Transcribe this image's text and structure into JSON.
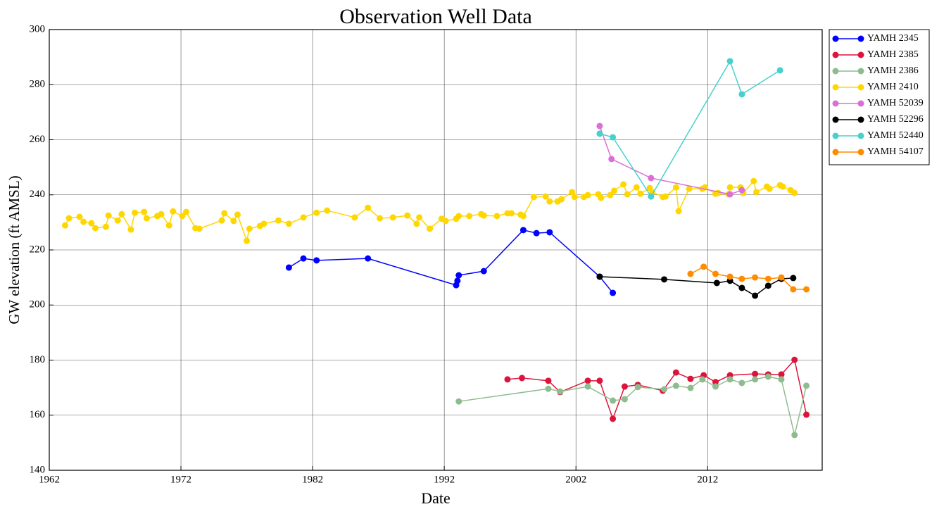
{
  "chart_data": {
    "type": "line",
    "title": "Observation Well Data",
    "x_label": "Date",
    "y_label": "GW elevation (ft AMSL)",
    "xlim": [
      1962,
      2020.7
    ],
    "xticks": [
      1962,
      1972,
      1982,
      1992,
      2002,
      2012
    ],
    "ylim": [
      140,
      300
    ],
    "yticks": [
      140,
      160,
      180,
      200,
      220,
      240,
      260,
      280,
      300
    ],
    "grid": true,
    "legend": "outside-upper-right",
    "series": [
      {
        "name": "YAMH 2345",
        "color": "#0000ff",
        "x": [
          1980.2,
          1981.3,
          1982.3,
          1986.2,
          1992.9,
          1993.0,
          1993.1,
          1995.0,
          1998.0,
          1999.0,
          2000.0,
          2003.8,
          2004.8
        ],
        "values": [
          213.6,
          216.9,
          216.2,
          216.9,
          207.2,
          208.8,
          210.8,
          212.3,
          227.2,
          226.1,
          226.4,
          210.3,
          204.4
        ]
      },
      {
        "name": "YAMH 2385",
        "color": "#dc143c",
        "x": [
          1996.8,
          1997.9,
          1999.9,
          2000.8,
          2002.9,
          2003.8,
          2004.8,
          2005.7,
          2006.7,
          2008.6,
          2009.6,
          2010.7,
          2011.7,
          2012.6,
          2013.7,
          2015.6,
          2016.6,
          2017.6,
          2018.6,
          2019.5
        ],
        "values": [
          173.0,
          173.5,
          172.5,
          168.4,
          172.5,
          172.5,
          158.7,
          170.4,
          171.0,
          168.9,
          175.5,
          173.2,
          174.5,
          172.0,
          174.5,
          175.0,
          174.8,
          174.8,
          180.1,
          160.2
        ]
      },
      {
        "name": "YAMH 2386",
        "color": "#8fbc8f",
        "x": [
          1993.1,
          1999.9,
          2000.8,
          2002.9,
          2004.8,
          2005.7,
          2006.7,
          2008.7,
          2009.6,
          2010.7,
          2011.6,
          2012.6,
          2013.7,
          2014.6,
          2015.6,
          2016.6,
          2017.6,
          2018.6,
          2019.5
        ],
        "values": [
          165.0,
          169.6,
          168.6,
          170.4,
          165.3,
          165.8,
          170.2,
          169.4,
          170.7,
          169.9,
          173.0,
          170.4,
          173.0,
          171.7,
          173.0,
          174.0,
          173.0,
          152.8,
          170.7
        ]
      },
      {
        "name": "YAMH 2410",
        "color": "#ffd700",
        "x": [
          1963.2,
          1963.5,
          1964.3,
          1964.6,
          1965.2,
          1965.5,
          1966.3,
          1966.5,
          1967.2,
          1967.5,
          1968.2,
          1968.5,
          1969.2,
          1969.4,
          1970.2,
          1970.5,
          1971.1,
          1971.4,
          1972.1,
          1972.4,
          1973.1,
          1973.4,
          1975.1,
          1975.3,
          1976.0,
          1976.3,
          1977.0,
          1977.2,
          1978.0,
          1978.3,
          1979.4,
          1980.2,
          1981.3,
          1982.3,
          1983.1,
          1985.2,
          1986.2,
          1987.1,
          1988.1,
          1989.2,
          1989.9,
          1990.1,
          1990.9,
          1991.8,
          1992.1,
          1992.9,
          1993.1,
          1993.9,
          1994.8,
          1995.0,
          1996.0,
          1996.8,
          1997.1,
          1997.8,
          1998.0,
          1998.8,
          1999.7,
          2000.0,
          2000.6,
          2000.9,
          2001.7,
          2001.9,
          2002.6,
          2002.9,
          2003.7,
          2003.9,
          2004.6,
          2004.9,
          2005.6,
          2005.9,
          2006.6,
          2006.9,
          2007.6,
          2007.8,
          2008.6,
          2008.8,
          2009.6,
          2009.8,
          2010.6,
          2011.6,
          2011.8,
          2012.6,
          2012.8,
          2013.6,
          2013.7,
          2014.5,
          2014.7,
          2015.5,
          2015.7,
          2016.5,
          2016.7,
          2017.5,
          2017.7,
          2018.3,
          2018.6
        ],
        "values": [
          228.9,
          231.5,
          232.0,
          230.2,
          229.7,
          227.9,
          228.4,
          232.5,
          230.7,
          233.0,
          227.4,
          233.5,
          233.8,
          231.5,
          232.3,
          233.0,
          228.9,
          234.0,
          232.3,
          233.8,
          227.9,
          227.7,
          230.7,
          233.3,
          230.5,
          232.8,
          223.3,
          227.7,
          228.7,
          229.5,
          230.7,
          229.5,
          231.8,
          233.5,
          234.3,
          231.8,
          235.3,
          231.5,
          231.8,
          232.5,
          229.5,
          231.8,
          227.7,
          231.3,
          230.5,
          231.3,
          232.3,
          232.3,
          233.0,
          232.5,
          232.3,
          233.3,
          233.3,
          232.8,
          232.3,
          239.2,
          239.4,
          237.6,
          237.6,
          238.4,
          241.0,
          239.2,
          239.2,
          239.9,
          240.2,
          238.9,
          239.9,
          241.5,
          243.8,
          240.2,
          242.7,
          240.4,
          242.5,
          241.0,
          239.2,
          239.4,
          242.7,
          234.1,
          242.2,
          242.2,
          242.7,
          240.4,
          240.7,
          240.2,
          242.7,
          242.7,
          240.7,
          245.0,
          241.0,
          243.0,
          242.2,
          243.5,
          243.0,
          241.7,
          240.7
        ]
      },
      {
        "name": "YAMH 52039",
        "color": "#da70d6",
        "x": [
          2003.8,
          2004.7,
          2007.7,
          2013.7,
          2014.6
        ],
        "values": [
          265.0,
          253.0,
          246.1,
          240.2,
          241.7
        ]
      },
      {
        "name": "YAMH 52296",
        "color": "#000000",
        "x": [
          2003.8,
          2008.7,
          2012.7,
          2013.7,
          2014.6,
          2015.6,
          2016.6,
          2017.6,
          2018.5
        ],
        "values": [
          210.3,
          209.3,
          208.0,
          208.8,
          206.2,
          203.4,
          207.0,
          209.5,
          209.8
        ]
      },
      {
        "name": "YAMH 52440",
        "color": "#48d1cc",
        "x": [
          2003.8,
          2004.8,
          2007.7,
          2013.7,
          2014.6,
          2017.5
        ],
        "values": [
          262.2,
          260.9,
          239.4,
          288.5,
          276.5,
          285.2
        ]
      },
      {
        "name": "YAMH 54107",
        "color": "#ff8c00",
        "x": [
          2010.7,
          2011.7,
          2012.6,
          2013.7,
          2014.6,
          2015.6,
          2016.6,
          2017.6,
          2018.5,
          2019.5
        ],
        "values": [
          211.3,
          213.9,
          211.3,
          210.3,
          209.5,
          210.0,
          209.5,
          210.0,
          205.7,
          205.7
        ]
      }
    ]
  }
}
